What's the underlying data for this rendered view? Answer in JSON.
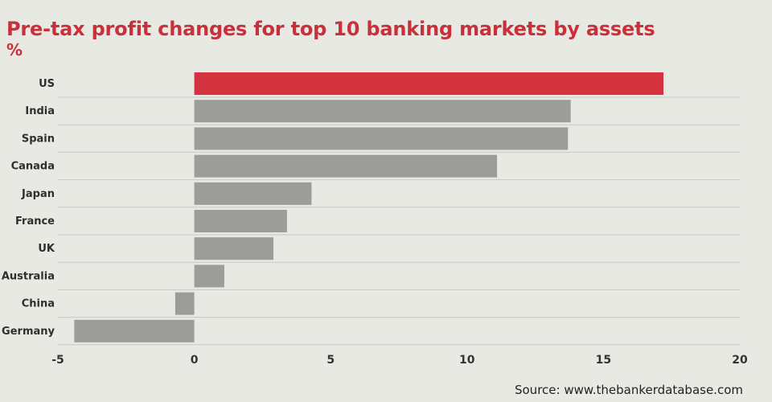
{
  "chart_data": {
    "type": "bar",
    "orientation": "horizontal",
    "title": "Pre-tax profit changes for top 10 banking markets by assets",
    "unit": "%",
    "categories": [
      "US",
      "India",
      "Spain",
      "Canada",
      "Japan",
      "France",
      "UK",
      "Australia",
      "China",
      "Germany"
    ],
    "values": [
      17.2,
      13.8,
      13.7,
      11.1,
      4.3,
      3.4,
      2.9,
      1.1,
      -0.7,
      -4.4
    ],
    "xlim": [
      -5,
      20
    ],
    "xticks": [
      -5,
      0,
      5,
      10,
      15,
      20
    ],
    "grid": true,
    "highlight_category": "US",
    "colors": {
      "highlight": "#d2333f",
      "bar": "#9c9c9a",
      "title": "#c9303b",
      "grid": "#c8c8c3"
    }
  },
  "source": "Source: www.thebankerdatabase.com"
}
